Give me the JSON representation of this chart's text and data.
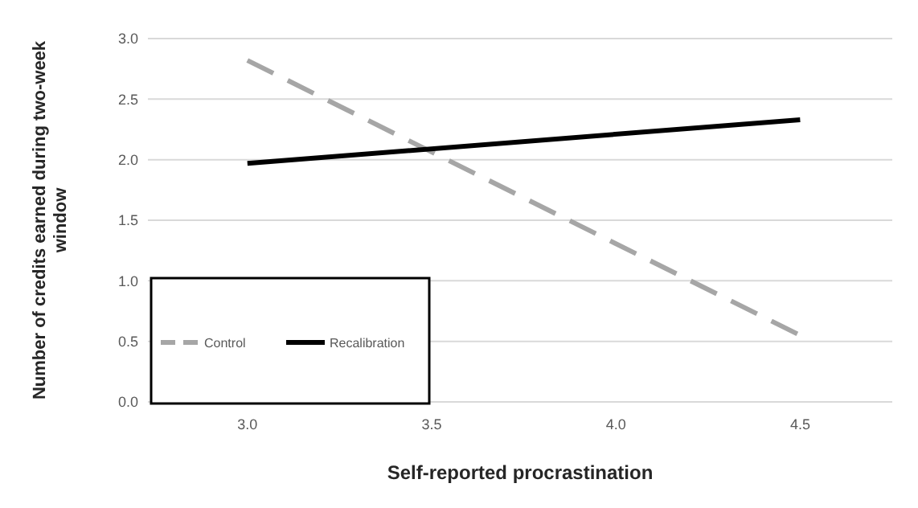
{
  "chart_data": {
    "type": "line",
    "xlabel": "Self-reported procrastination",
    "ylabel": "Number of credits earned during two-week window",
    "x": [
      3.0,
      4.5
    ],
    "xlim": [
      2.73,
      4.75
    ],
    "xticks": [
      {
        "value": 3.0,
        "label": "3.0"
      },
      {
        "value": 3.5,
        "label": "3.5"
      },
      {
        "value": 4.0,
        "label": "4.0"
      },
      {
        "value": 4.5,
        "label": "4.5"
      }
    ],
    "ylim": [
      0,
      3
    ],
    "yticks": [
      {
        "value": 0,
        "label": "0.0"
      },
      {
        "value": 0.5,
        "label": "0.5"
      },
      {
        "value": 1,
        "label": "1.0"
      },
      {
        "value": 1.5,
        "label": "1.5"
      },
      {
        "value": 2,
        "label": "2.0"
      },
      {
        "value": 2.5,
        "label": "2.5"
      },
      {
        "value": 3,
        "label": "3.0"
      }
    ],
    "grid": "y",
    "legend": "bottom left",
    "marker": "none",
    "series": [
      {
        "name": "Control",
        "color": "#a6a6a6",
        "values": [
          2.82,
          0.55
        ],
        "line_style": "dashed"
      },
      {
        "name": "Recalibration",
        "color": "#000000",
        "values": [
          1.97,
          2.33
        ],
        "line_style": "solid"
      }
    ]
  }
}
